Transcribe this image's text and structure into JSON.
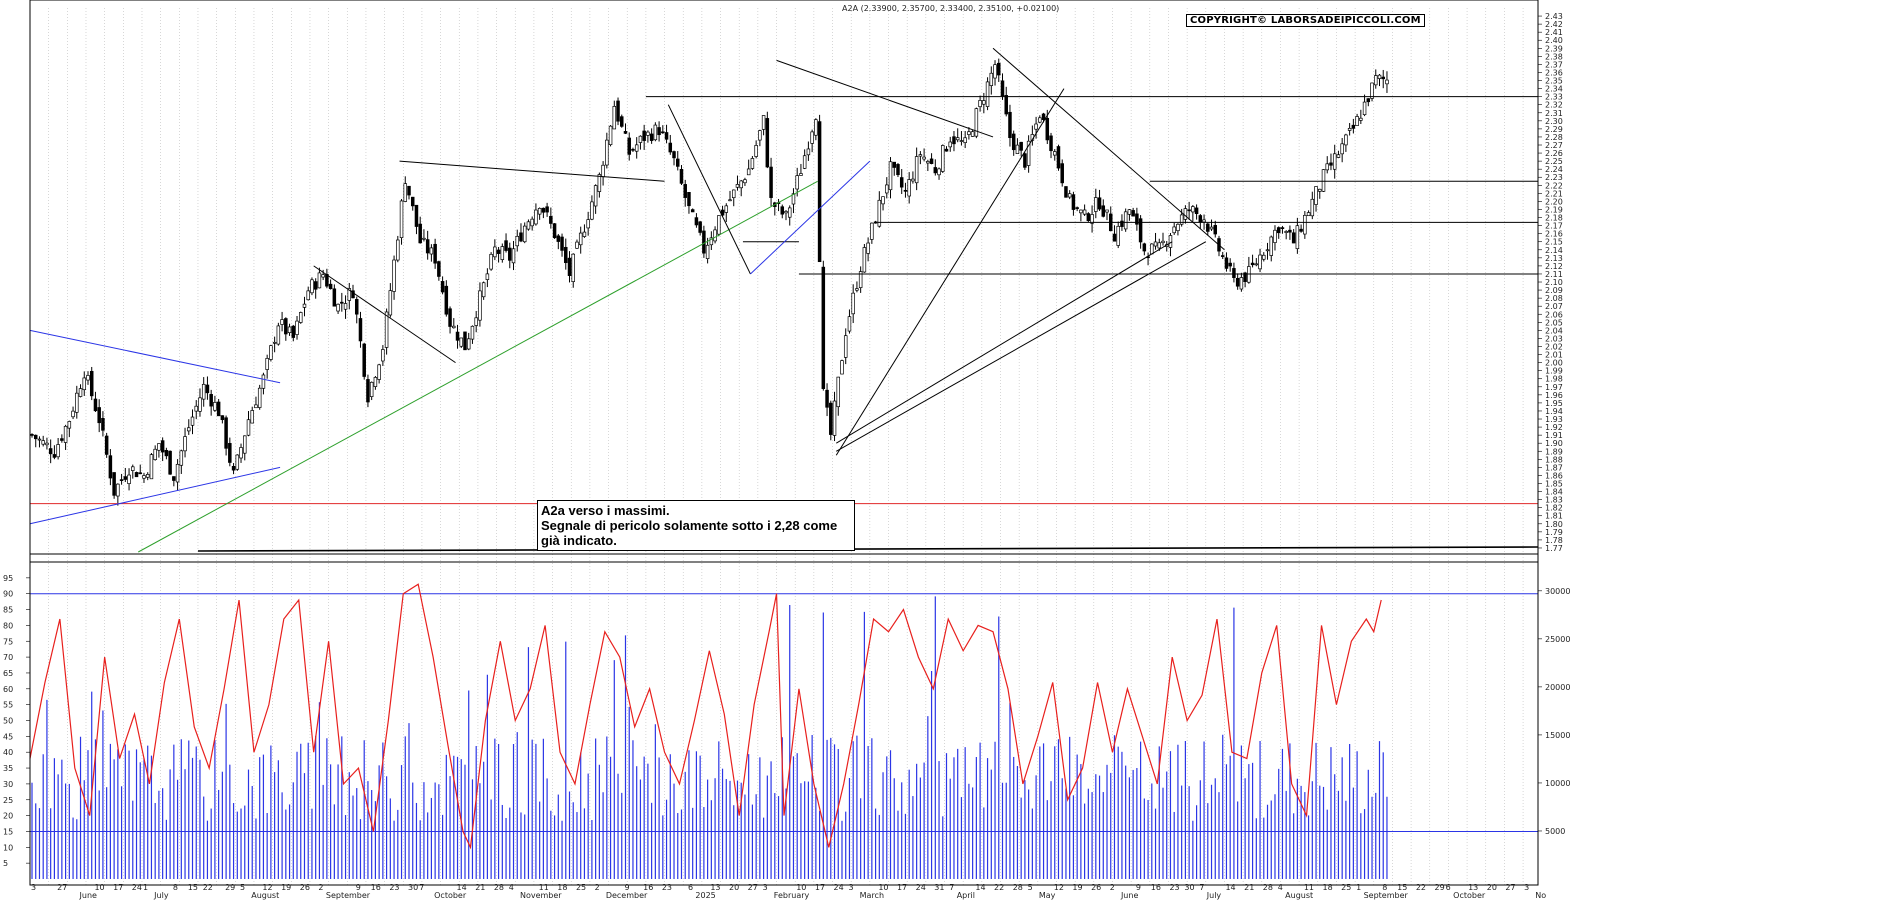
{
  "header": "A2A (2.33900, 2.35700, 2.33400, 2.35100, +0.02100)",
  "copyright": "COPYRIGHT© LABORSADEIPICCOLI.COM",
  "note": {
    "line1": "A2a verso i massimi.",
    "line2": "Segnale di pericolo solamente sotto i 2,28 come",
    "line3": "già indicato."
  },
  "colors": {
    "candle": "#000000",
    "resistance_red": "#e0282a",
    "trend_blue": "#2b35e6",
    "trend_green": "#2ea02c",
    "rsi": "#e8201d",
    "volume": "#2b35e6",
    "grid": "#bdbdbd"
  },
  "chart_data": [
    {
      "type": "candlestick",
      "y_axis_position": "right",
      "ylim": [
        1.765,
        2.44
      ],
      "y_ticks": [
        "2.43",
        "2.42",
        "2.41",
        "2.40",
        "2.39",
        "2.38",
        "2.37",
        "2.36",
        "2.35",
        "2.34",
        "2.33",
        "2.32",
        "2.31",
        "2.30",
        "2.29",
        "2.28",
        "2.27",
        "2.26",
        "2.25",
        "2.24",
        "2.23",
        "2.22",
        "2.21",
        "2.20",
        "2.19",
        "2.18",
        "2.17",
        "2.16",
        "2.15",
        "2.14",
        "2.13",
        "2.12",
        "2.11",
        "2.10",
        "2.09",
        "2.08",
        "2.07",
        "2.06",
        "2.05",
        "2.04",
        "2.03",
        "2.02",
        "2.01",
        "2.00",
        "1.99",
        "1.98",
        "1.97",
        "1.96",
        "1.95",
        "1.94",
        "1.93",
        "1.92",
        "1.91",
        "1.90",
        "1.89",
        "1.88",
        "1.87",
        "1.86",
        "1.85",
        "1.84",
        "1.83",
        "1.82",
        "1.81",
        "1.80",
        "1.79",
        "1.78",
        "1.77"
      ],
      "close_path": [
        [
          0,
          1.91
        ],
        [
          6,
          1.89
        ],
        [
          10,
          1.93
        ],
        [
          14,
          1.99
        ],
        [
          18,
          1.93
        ],
        [
          22,
          1.84
        ],
        [
          26,
          1.87
        ],
        [
          30,
          1.86
        ],
        [
          34,
          1.9
        ],
        [
          38,
          1.86
        ],
        [
          42,
          1.92
        ],
        [
          46,
          1.97
        ],
        [
          50,
          1.94
        ],
        [
          54,
          1.86
        ],
        [
          58,
          1.93
        ],
        [
          62,
          1.98
        ],
        [
          66,
          2.05
        ],
        [
          70,
          2.03
        ],
        [
          74,
          2.09
        ],
        [
          78,
          2.11
        ],
        [
          82,
          2.07
        ],
        [
          86,
          2.09
        ],
        [
          90,
          1.96
        ],
        [
          94,
          2.02
        ],
        [
          98,
          2.16
        ],
        [
          100,
          2.23
        ],
        [
          104,
          2.15
        ],
        [
          108,
          2.13
        ],
        [
          112,
          2.05
        ],
        [
          116,
          2.02
        ],
        [
          120,
          2.08
        ],
        [
          124,
          2.14
        ],
        [
          128,
          2.13
        ],
        [
          132,
          2.17
        ],
        [
          136,
          2.2
        ],
        [
          140,
          2.16
        ],
        [
          144,
          2.11
        ],
        [
          148,
          2.17
        ],
        [
          152,
          2.23
        ],
        [
          156,
          2.32
        ],
        [
          160,
          2.26
        ],
        [
          164,
          2.28
        ],
        [
          168,
          2.29
        ],
        [
          172,
          2.25
        ],
        [
          176,
          2.19
        ],
        [
          180,
          2.14
        ],
        [
          184,
          2.18
        ],
        [
          188,
          2.21
        ],
        [
          192,
          2.24
        ],
        [
          196,
          2.3
        ],
        [
          198,
          2.2
        ],
        [
          202,
          2.18
        ],
        [
          206,
          2.24
        ],
        [
          210,
          2.31
        ],
        [
          212,
          1.96
        ],
        [
          214,
          1.91
        ],
        [
          218,
          2.04
        ],
        [
          222,
          2.12
        ],
        [
          226,
          2.18
        ],
        [
          230,
          2.24
        ],
        [
          234,
          2.21
        ],
        [
          238,
          2.26
        ],
        [
          242,
          2.24
        ],
        [
          246,
          2.28
        ],
        [
          250,
          2.27
        ],
        [
          254,
          2.32
        ],
        [
          258,
          2.37
        ],
        [
          262,
          2.28
        ],
        [
          266,
          2.25
        ],
        [
          270,
          2.31
        ],
        [
          274,
          2.26
        ],
        [
          278,
          2.2
        ],
        [
          282,
          2.18
        ],
        [
          286,
          2.2
        ],
        [
          290,
          2.16
        ],
        [
          294,
          2.19
        ],
        [
          298,
          2.14
        ],
        [
          302,
          2.14
        ],
        [
          306,
          2.17
        ],
        [
          310,
          2.19
        ],
        [
          314,
          2.18
        ],
        [
          318,
          2.14
        ],
        [
          322,
          2.1
        ],
        [
          326,
          2.11
        ],
        [
          330,
          2.14
        ],
        [
          334,
          2.17
        ],
        [
          338,
          2.15
        ],
        [
          342,
          2.19
        ],
        [
          346,
          2.23
        ],
        [
          350,
          2.26
        ],
        [
          354,
          2.29
        ],
        [
          358,
          2.33
        ],
        [
          360,
          2.351
        ]
      ],
      "hlines": [
        {
          "y": 2.33,
          "color": "black"
        },
        {
          "y": 2.225,
          "color": "black"
        },
        {
          "y": 2.174,
          "color": "black"
        },
        {
          "y": 2.11,
          "color": "black"
        },
        {
          "y": 1.825,
          "color": "red"
        }
      ],
      "trendlines": [
        {
          "color": "blue",
          "from": [
            0,
            2.04
          ],
          "to": [
            67,
            1.975
          ]
        },
        {
          "color": "blue",
          "from": [
            0,
            1.8
          ],
          "to": [
            67,
            1.87
          ]
        },
        {
          "color": "green",
          "from": [
            29,
            1.765
          ],
          "to": [
            211,
            2.225
          ]
        },
        {
          "color": "black",
          "from": [
            76,
            2.12
          ],
          "to": [
            114,
            2.0
          ]
        },
        {
          "color": "black",
          "from": [
            99,
            2.25
          ],
          "to": [
            170,
            2.225
          ]
        },
        {
          "color": "black",
          "from": [
            171,
            2.32
          ],
          "to": [
            193,
            2.11
          ]
        },
        {
          "color": "black",
          "from": [
            191,
            2.15
          ],
          "to": [
            206,
            2.15
          ]
        },
        {
          "color": "blue",
          "from": [
            193,
            2.11
          ],
          "to": [
            225,
            2.25
          ]
        },
        {
          "color": "black",
          "from": [
            200,
            2.375
          ],
          "to": [
            258,
            2.28
          ]
        },
        {
          "color": "black",
          "from": [
            216,
            1.885
          ],
          "to": [
            277,
            2.34
          ]
        },
        {
          "color": "black",
          "from": [
            216,
            1.89
          ],
          "to": [
            315,
            2.15
          ]
        },
        {
          "color": "black",
          "from": [
            216,
            1.9
          ],
          "to": [
            306,
            2.15
          ]
        },
        {
          "color": "black",
          "from": [
            258,
            2.39
          ],
          "to": [
            320,
            2.14
          ]
        }
      ],
      "x_bars": 363
    },
    {
      "type": "volume_and_oscillator",
      "y_left_ticks": [
        "95",
        "90",
        "85",
        "80",
        "75",
        "70",
        "65",
        "60",
        "55",
        "50",
        "45",
        "40",
        "35",
        "30",
        "25",
        "20",
        "15",
        "10",
        "5"
      ],
      "y_right_ticks": [
        "30000",
        "25000",
        "20000",
        "15000",
        "10000",
        "5000"
      ],
      "osc_levels": [
        90,
        15
      ],
      "oscillator": [
        [
          0,
          38
        ],
        [
          4,
          62
        ],
        [
          8,
          82
        ],
        [
          12,
          35
        ],
        [
          16,
          20
        ],
        [
          20,
          70
        ],
        [
          24,
          38
        ],
        [
          28,
          52
        ],
        [
          32,
          30
        ],
        [
          36,
          62
        ],
        [
          40,
          82
        ],
        [
          44,
          48
        ],
        [
          48,
          35
        ],
        [
          52,
          60
        ],
        [
          56,
          88
        ],
        [
          60,
          40
        ],
        [
          64,
          55
        ],
        [
          68,
          82
        ],
        [
          72,
          88
        ],
        [
          76,
          40
        ],
        [
          80,
          75
        ],
        [
          84,
          30
        ],
        [
          88,
          35
        ],
        [
          92,
          15
        ],
        [
          96,
          50
        ],
        [
          100,
          90
        ],
        [
          104,
          93
        ],
        [
          108,
          70
        ],
        [
          112,
          42
        ],
        [
          116,
          15
        ],
        [
          118,
          10
        ],
        [
          122,
          50
        ],
        [
          126,
          75
        ],
        [
          130,
          50
        ],
        [
          134,
          60
        ],
        [
          138,
          80
        ],
        [
          142,
          40
        ],
        [
          146,
          30
        ],
        [
          150,
          55
        ],
        [
          154,
          78
        ],
        [
          158,
          70
        ],
        [
          162,
          48
        ],
        [
          166,
          60
        ],
        [
          170,
          40
        ],
        [
          174,
          30
        ],
        [
          178,
          50
        ],
        [
          182,
          72
        ],
        [
          186,
          52
        ],
        [
          190,
          20
        ],
        [
          194,
          55
        ],
        [
          198,
          78
        ],
        [
          200,
          90
        ],
        [
          202,
          20
        ],
        [
          206,
          60
        ],
        [
          210,
          30
        ],
        [
          214,
          10
        ],
        [
          218,
          30
        ],
        [
          222,
          55
        ],
        [
          226,
          82
        ],
        [
          230,
          78
        ],
        [
          234,
          85
        ],
        [
          238,
          70
        ],
        [
          242,
          60
        ],
        [
          246,
          82
        ],
        [
          250,
          72
        ],
        [
          254,
          80
        ],
        [
          258,
          78
        ],
        [
          262,
          60
        ],
        [
          266,
          30
        ],
        [
          270,
          45
        ],
        [
          274,
          62
        ],
        [
          278,
          25
        ],
        [
          282,
          35
        ],
        [
          286,
          62
        ],
        [
          290,
          40
        ],
        [
          294,
          60
        ],
        [
          298,
          45
        ],
        [
          302,
          30
        ],
        [
          306,
          70
        ],
        [
          310,
          50
        ],
        [
          314,
          58
        ],
        [
          318,
          82
        ],
        [
          322,
          40
        ],
        [
          326,
          38
        ],
        [
          330,
          65
        ],
        [
          334,
          80
        ],
        [
          338,
          30
        ],
        [
          342,
          20
        ],
        [
          346,
          80
        ],
        [
          350,
          55
        ],
        [
          354,
          75
        ],
        [
          358,
          82
        ],
        [
          360,
          78
        ],
        [
          362,
          88
        ]
      ]
    }
  ],
  "x_labels": [
    {
      "i": 0,
      "t": "3"
    },
    {
      "i": 7,
      "t": "27"
    },
    {
      "i": 13,
      "t": "June"
    },
    {
      "i": 17,
      "t": "10"
    },
    {
      "i": 22,
      "t": "17"
    },
    {
      "i": 27,
      "t": "24"
    },
    {
      "i": 30,
      "t": "1"
    },
    {
      "i": 33,
      "t": "July"
    },
    {
      "i": 38,
      "t": "8"
    },
    {
      "i": 42,
      "t": "15"
    },
    {
      "i": 46,
      "t": "22"
    },
    {
      "i": 52,
      "t": "29"
    },
    {
      "i": 56,
      "t": "5"
    },
    {
      "i": 59,
      "t": "August"
    },
    {
      "i": 62,
      "t": "12"
    },
    {
      "i": 67,
      "t": "19"
    },
    {
      "i": 72,
      "t": "26"
    },
    {
      "i": 77,
      "t": "2"
    },
    {
      "i": 79,
      "t": "September"
    },
    {
      "i": 87,
      "t": "9"
    },
    {
      "i": 91,
      "t": "16"
    },
    {
      "i": 96,
      "t": "23"
    },
    {
      "i": 101,
      "t": "30"
    },
    {
      "i": 104,
      "t": "7"
    },
    {
      "i": 108,
      "t": "October"
    },
    {
      "i": 114,
      "t": "14"
    },
    {
      "i": 119,
      "t": "21"
    },
    {
      "i": 124,
      "t": "28"
    },
    {
      "i": 128,
      "t": "4"
    },
    {
      "i": 131,
      "t": "November"
    },
    {
      "i": 136,
      "t": "11"
    },
    {
      "i": 141,
      "t": "18"
    },
    {
      "i": 146,
      "t": "25"
    },
    {
      "i": 151,
      "t": "2"
    },
    {
      "i": 154,
      "t": "December"
    },
    {
      "i": 159,
      "t": "9"
    },
    {
      "i": 164,
      "t": "16"
    },
    {
      "i": 169,
      "t": "23"
    },
    {
      "i": 176,
      "t": "6"
    },
    {
      "i": 178,
      "t": "2025"
    },
    {
      "i": 182,
      "t": "13"
    },
    {
      "i": 187,
      "t": "20"
    },
    {
      "i": 192,
      "t": "27"
    },
    {
      "i": 196,
      "t": "3"
    },
    {
      "i": 199,
      "t": "February"
    },
    {
      "i": 205,
      "t": "10"
    },
    {
      "i": 210,
      "t": "17"
    },
    {
      "i": 215,
      "t": "24"
    },
    {
      "i": 219,
      "t": "3"
    },
    {
      "i": 222,
      "t": "March"
    },
    {
      "i": 227,
      "t": "10"
    },
    {
      "i": 232,
      "t": "17"
    },
    {
      "i": 237,
      "t": "24"
    },
    {
      "i": 242,
      "t": "31"
    },
    {
      "i": 246,
      "t": "7"
    },
    {
      "i": 248,
      "t": "April"
    },
    {
      "i": 253,
      "t": "14"
    },
    {
      "i": 258,
      "t": "22"
    },
    {
      "i": 263,
      "t": "28"
    },
    {
      "i": 267,
      "t": "5"
    },
    {
      "i": 270,
      "t": "May"
    },
    {
      "i": 274,
      "t": "12"
    },
    {
      "i": 279,
      "t": "19"
    },
    {
      "i": 284,
      "t": "26"
    },
    {
      "i": 289,
      "t": "2"
    },
    {
      "i": 292,
      "t": "June"
    },
    {
      "i": 296,
      "t": "9"
    },
    {
      "i": 300,
      "t": "16"
    },
    {
      "i": 305,
      "t": "23"
    },
    {
      "i": 309,
      "t": "30"
    },
    {
      "i": 313,
      "t": "7"
    },
    {
      "i": 315,
      "t": "July"
    },
    {
      "i": 320,
      "t": "14"
    },
    {
      "i": 325,
      "t": "21"
    },
    {
      "i": 330,
      "t": "28"
    },
    {
      "i": 334,
      "t": "4"
    },
    {
      "i": 336,
      "t": "August"
    },
    {
      "i": 341,
      "t": "11"
    },
    {
      "i": 346,
      "t": "18"
    },
    {
      "i": 351,
      "t": "25"
    },
    {
      "i": 355,
      "t": "1"
    },
    {
      "i": 357,
      "t": "September"
    },
    {
      "i": 362,
      "t": "8"
    },
    {
      "i": 366,
      "t": "15"
    },
    {
      "i": 371,
      "t": "22"
    },
    {
      "i": 376,
      "t": "29"
    },
    {
      "i": 379,
      "t": "6"
    },
    {
      "i": 381,
      "t": "October"
    },
    {
      "i": 385,
      "t": "13"
    },
    {
      "i": 390,
      "t": "20"
    },
    {
      "i": 395,
      "t": "27"
    },
    {
      "i": 400,
      "t": "3"
    },
    {
      "i": 403,
      "t": "No"
    }
  ]
}
